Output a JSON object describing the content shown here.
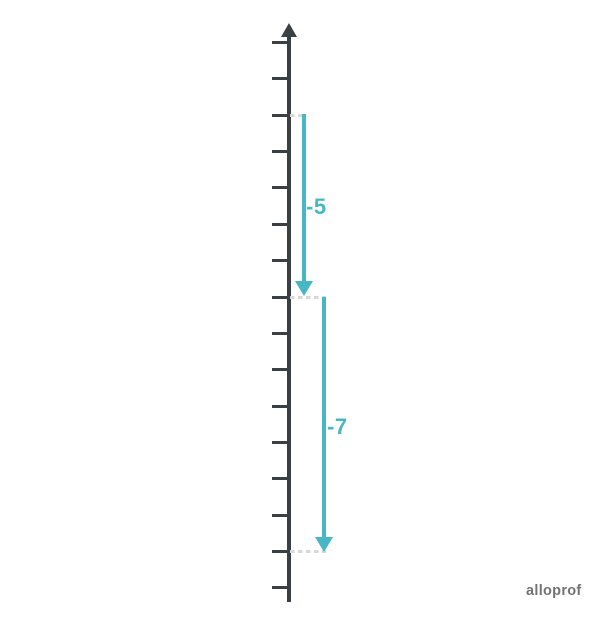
{
  "figure": {
    "type": "vertical-number-line",
    "description": "Vertical number line with an upward axis arrow, 16 unlabeled tick marks, and two successive downward jumps drawn as teal arrows with dashed guide lines at their start and end points.",
    "tick_count": 16,
    "jumps": [
      {
        "label": "-5",
        "ticks_spanned": 5,
        "direction": "down"
      },
      {
        "label": "-7",
        "ticks_spanned": 7,
        "direction": "down"
      }
    ],
    "colors": {
      "axis": "#3b4045",
      "jump_arrow": "#47b6c5",
      "dashed_guide": "#d8d8d8",
      "watermark": "#737373",
      "background": "#ffffff"
    },
    "watermark": "alloprof"
  }
}
